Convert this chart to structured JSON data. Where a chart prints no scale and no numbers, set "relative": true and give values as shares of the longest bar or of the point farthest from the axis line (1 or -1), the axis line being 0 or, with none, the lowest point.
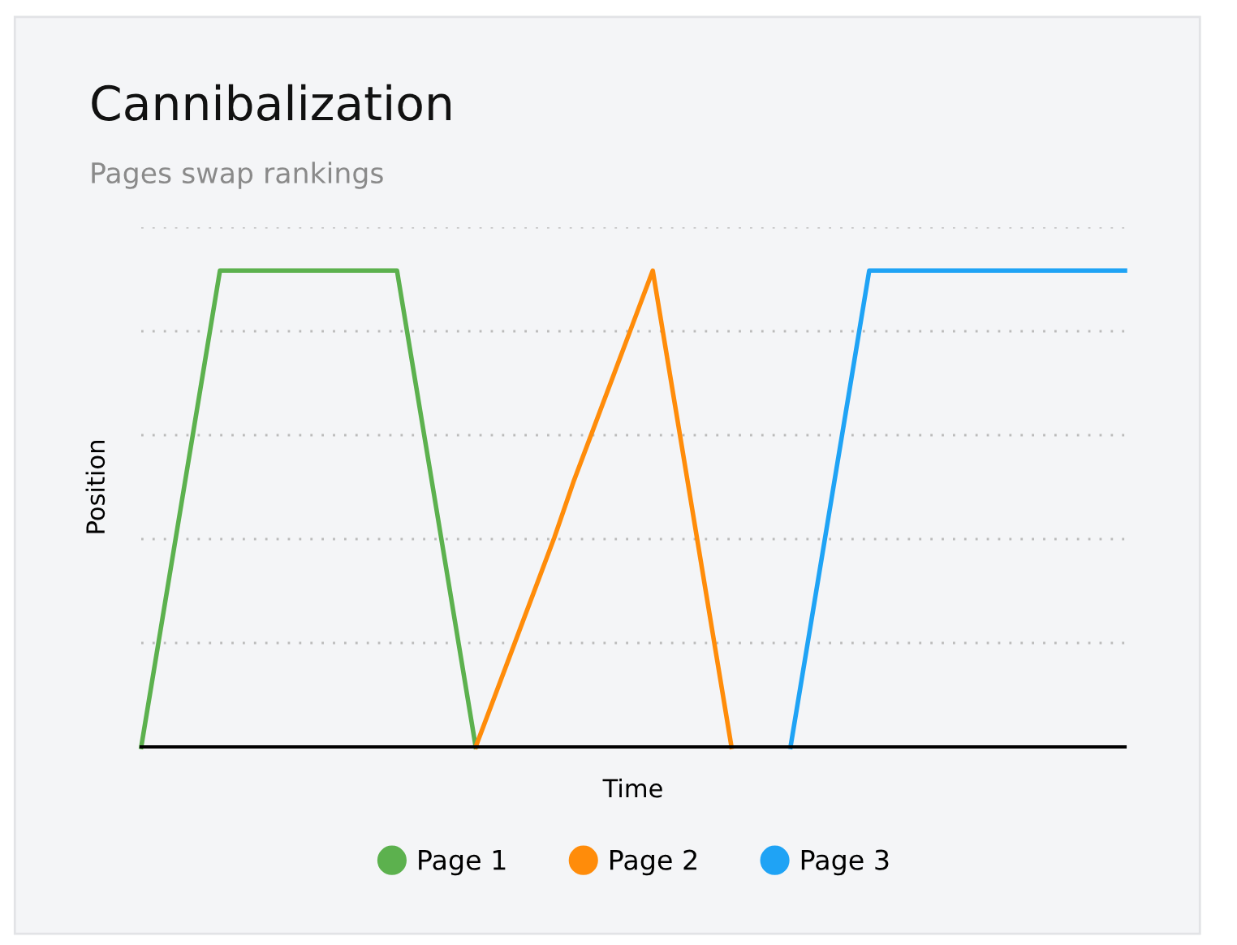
{
  "chart_data": {
    "type": "line",
    "title": "Cannibalization",
    "subtitle": "Pages swap rankings",
    "xlabel": "Time",
    "ylabel": "Position",
    "relative": true,
    "tick_labels": false,
    "grid": "y",
    "legend": "bottom",
    "marker": "none",
    "line_style": "solid",
    "categories": [
      null,
      null,
      null,
      null,
      null,
      null,
      null,
      null,
      null,
      null,
      null,
      null,
      null,
      null,
      null,
      null,
      null,
      null,
      null,
      null,
      null,
      null,
      null,
      null,
      null,
      null,
      null,
      null,
      null,
      null,
      null,
      null,
      null,
      null,
      null,
      null,
      null,
      null,
      null,
      null,
      null,
      null,
      null,
      null,
      null,
      null,
      null,
      null,
      null,
      null,
      null
    ],
    "series": [
      {
        "name": "Page 1",
        "color": "#5cb14e",
        "values": [
          0,
          0.25,
          0.5,
          0.75,
          1,
          1,
          1,
          1,
          1,
          1,
          1,
          1,
          1,
          1,
          0.75,
          0.5,
          0.25,
          0,
          null,
          null,
          null,
          null,
          null,
          null,
          null,
          null,
          null,
          null,
          null,
          null,
          null,
          null,
          null,
          null,
          null,
          null,
          null,
          null,
          null,
          null,
          null,
          null,
          null,
          null,
          null,
          null,
          null,
          null,
          null,
          null,
          null
        ]
      },
      {
        "name": "Page 2",
        "color": "#ff8c0a",
        "values": [
          null,
          null,
          null,
          null,
          null,
          null,
          null,
          null,
          null,
          null,
          null,
          null,
          null,
          null,
          null,
          null,
          null,
          0,
          0.11,
          0.22,
          0.33,
          0.44,
          0.56,
          0.67,
          0.78,
          0.89,
          1,
          0.75,
          0.5,
          0.25,
          0,
          null,
          null,
          null,
          null,
          null,
          null,
          null,
          null,
          null,
          null,
          null,
          null,
          null,
          null,
          null,
          null,
          null,
          null,
          null,
          null
        ]
      },
      {
        "name": "Page 3",
        "color": "#1fa3f5",
        "values": [
          null,
          null,
          null,
          null,
          null,
          null,
          null,
          null,
          null,
          null,
          null,
          null,
          null,
          null,
          null,
          null,
          null,
          null,
          null,
          null,
          null,
          null,
          null,
          null,
          null,
          null,
          null,
          null,
          null,
          null,
          null,
          null,
          null,
          0,
          0.25,
          0.5,
          0.75,
          1,
          1,
          1,
          1,
          1,
          1,
          1,
          1,
          1,
          1,
          1,
          1,
          1,
          1
        ]
      }
    ]
  }
}
